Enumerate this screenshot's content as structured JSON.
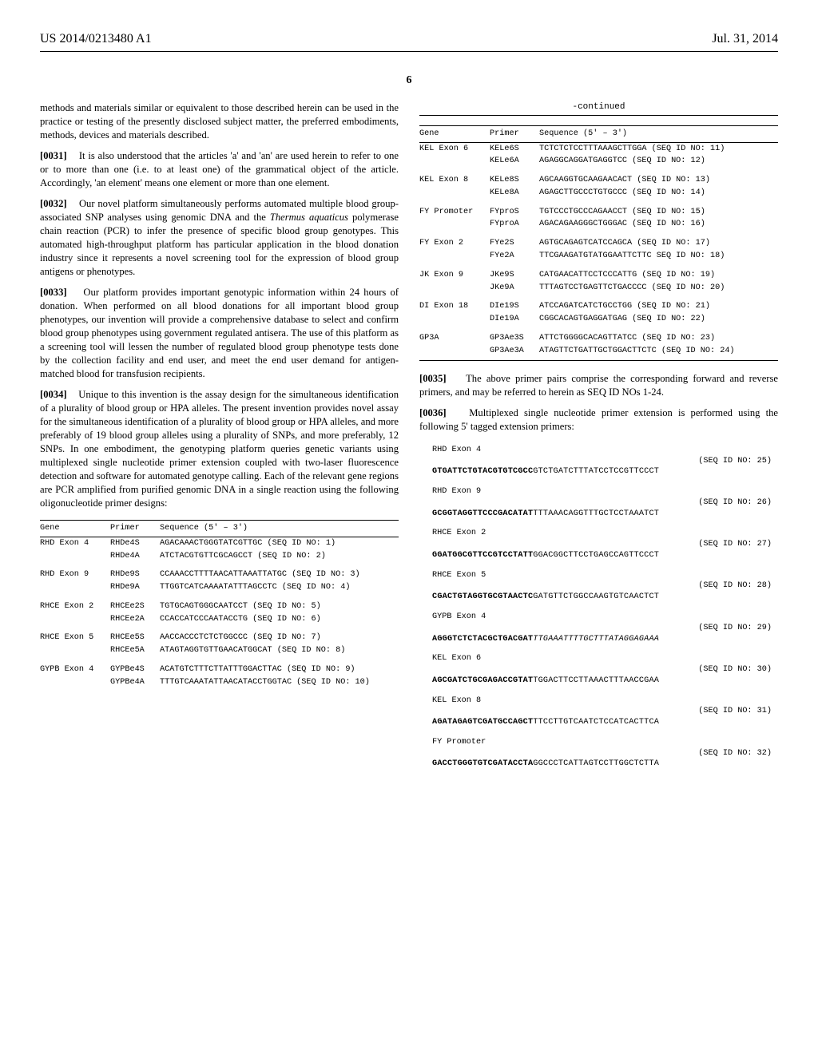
{
  "header": {
    "publication_number": "US 2014/0213480 A1",
    "publication_date": "Jul. 31, 2014"
  },
  "page_number": "6",
  "left_column": {
    "paragraphs": [
      {
        "num": "",
        "text": "methods and materials similar or equivalent to those described herein can be used in the practice or testing of the presently disclosed subject matter, the preferred embodiments, methods, devices and materials described."
      },
      {
        "num": "[0031]",
        "text": "It is also understood that the articles 'a' and 'an' are used herein to refer to one or to more than one (i.e. to at least one) of the grammatical object of the article. Accordingly, 'an element' means one element or more than one element."
      },
      {
        "num": "[0032]",
        "text_html": "Our novel platform simultaneously performs automated multiple blood group-associated SNP analyses using genomic DNA and the <span class=\"italic\">Thermus aquaticus</span> polymerase chain reaction (PCR) to infer the presence of specific blood group genotypes. This automated high-throughput platform has particular application in the blood donation industry since it represents a novel screening tool for the expression of blood group antigens or phenotypes."
      },
      {
        "num": "[0033]",
        "text": "Our platform provides important genotypic information within 24 hours of donation. When performed on all blood donations for all important blood group phenotypes, our invention will provide a comprehensive database to select and confirm blood group phenotypes using government regulated antisera. The use of this platform as a screening tool will lessen the number of regulated blood group phenotype tests done by the collection facility and end user, and meet the end user demand for antigen-matched blood for transfusion recipients."
      },
      {
        "num": "[0034]",
        "text": "Unique to this invention is the assay design for the simultaneous identification of a plurality of blood group or HPA alleles. The present invention provides novel assay for the simultaneous identification of a plurality of blood group or HPA alleles, and more preferably of 19 blood group alleles using a plurality of SNPs, and more preferably, 12 SNPs. In one embodiment, the genotyping platform queries genetic variants using multiplexed single nucleotide primer extension coupled with two-laser fluorescence detection and software for automated genotype calling. Each of the relevant gene regions are PCR amplified from purified genomic DNA in a single reaction using the following oligonucleotide primer designs:"
      }
    ],
    "table": {
      "headers": [
        "Gene",
        "Primer",
        "Sequence (5' – 3')"
      ],
      "rows": [
        {
          "gene": "RHD Exon 4",
          "primer": "RHDe4S",
          "seq": "AGACAAACTGGGTATCGTTGC (SEQ ID NO: 1)"
        },
        {
          "gene": "",
          "primer": "RHDe4A",
          "seq": "ATCTACGTGTTCGCAGCCT (SEQ ID NO: 2)"
        },
        {
          "gene": "RHD Exon 9",
          "primer": "RHDe9S",
          "seq": "CCAAACCTTTTAACATTAAATTATGC (SEQ ID NO: 3)"
        },
        {
          "gene": "",
          "primer": "RHDe9A",
          "seq": "TTGGTCATCAAAATATTTAGCCTC (SEQ ID NO: 4)"
        },
        {
          "gene": "RHCE Exon 2",
          "primer": "RHCEe2S",
          "seq": "TGTGCAGTGGGCAATCCT (SEQ ID NO: 5)"
        },
        {
          "gene": "",
          "primer": "RHCEe2A",
          "seq": "CCACCATCCCAATACCTG (SEQ ID NO: 6)"
        },
        {
          "gene": "RHCE Exon 5",
          "primer": "RHCEe5S",
          "seq": "AACCACCCTCTCTGGCCC (SEQ ID NO: 7)"
        },
        {
          "gene": "",
          "primer": "RHCEe5A",
          "seq": "ATAGTAGGTGTTGAACATGGCAT (SEQ ID NO: 8)"
        },
        {
          "gene": "GYPB Exon 4",
          "primer": "GYPBe4S",
          "seq": "ACATGTCTTTCTTATTTGGACTTAC (SEQ ID NO: 9)"
        },
        {
          "gene": "",
          "primer": "GYPBe4A",
          "seq": "TTTGTCAAATATTAACATACCTGGTAC (SEQ ID NO: 10)"
        }
      ]
    }
  },
  "right_column": {
    "continued_label": "-continued",
    "table": {
      "headers": [
        "Gene",
        "Primer",
        "Sequence (5' – 3')"
      ],
      "rows": [
        {
          "gene": "KEL Exon 6",
          "primer": "KELe6S",
          "seq": "TCTCTCTCCTTTAAAGCTTGGA (SEQ ID NO: 11)"
        },
        {
          "gene": "",
          "primer": "KELe6A",
          "seq": "AGAGGCAGGATGAGGTCC (SEQ ID NO: 12)"
        },
        {
          "gene": "KEL Exon 8",
          "primer": "KELe8S",
          "seq": "AGCAAGGTGCAAGAACACT (SEQ ID NO: 13)"
        },
        {
          "gene": "",
          "primer": "KELe8A",
          "seq": "AGAGCTTGCCCTGTGCCC (SEQ ID NO: 14)"
        },
        {
          "gene": "FY Promoter",
          "primer": "FYproS",
          "seq": "TGTCCCTGCCCAGAACCT (SEQ ID NO: 15)"
        },
        {
          "gene": "",
          "primer": "FYproA",
          "seq": "AGACAGAAGGGCTGGGAC (SEQ ID NO: 16)"
        },
        {
          "gene": "FY Exon 2",
          "primer": "FYe2S",
          "seq": "AGTGCAGAGTCATCCAGCA (SEQ ID NO: 17)"
        },
        {
          "gene": "",
          "primer": "FYe2A",
          "seq": "TTCGAAGATGTATGGAATTCTTC SEQ ID NO: 18)"
        },
        {
          "gene": "JK Exon 9",
          "primer": "JKe9S",
          "seq": "CATGAACATTCCTCCCATTG (SEQ ID NO: 19)"
        },
        {
          "gene": "",
          "primer": "JKe9A",
          "seq": "TTTAGTCCTGAGTTCTGACCCC (SEQ ID NO: 20)"
        },
        {
          "gene": "DI Exon 18",
          "primer": "DIe19S",
          "seq": "ATCCAGATCATCTGCCTGG (SEQ ID NO: 21)"
        },
        {
          "gene": "",
          "primer": "DIe19A",
          "seq": "CGGCACAGTGAGGATGAG (SEQ ID NO: 22)"
        },
        {
          "gene": "GP3A",
          "primer": "GP3Ae3S",
          "seq": "ATTCTGGGGCACAGTTATCC (SEQ ID NO: 23)"
        },
        {
          "gene": "",
          "primer": "GP3Ae3A",
          "seq": "ATAGTTCTGATTGCTGGACTTCTC (SEQ ID NO: 24)"
        }
      ]
    },
    "paragraphs": [
      {
        "num": "[0035]",
        "text": "The above primer pairs comprise the corresponding forward and reverse primers, and may be referred to herein as SEQ ID NOs 1-24."
      },
      {
        "num": "[0036]",
        "text": "Multiplexed single nucleotide primer extension is performed using the following 5' tagged extension primers:"
      }
    ],
    "ext_primers": [
      {
        "title": "RHD Exon 4",
        "seqid": "(SEQ ID NO: 25)",
        "tag": "GTGATTCTGTACGTGTCGCC",
        "tail": "GTCTGATCTTTATCCTCCGTTCCCT"
      },
      {
        "title": "RHD Exon 9",
        "seqid": "(SEQ ID NO: 26)",
        "tag": "GCGGTAGGTTCCCGACATAT",
        "tail": "TTTAAACAGGTTTGCTCCTAAATCT"
      },
      {
        "title": "RHCE Exon 2",
        "seqid": "(SEQ ID NO: 27)",
        "tag": "GGATGGCGTTCCGTCCTATT",
        "tail": "GGACGGCTTCCTGAGCCAGTTCCCT"
      },
      {
        "title": "RHCE Exon 5",
        "seqid": "(SEQ ID NO: 28)",
        "tag": "CGACTGTAGGTGCGTAACTC",
        "tail": "GATGTTCTGGCCAAGTGTCAACTCT"
      },
      {
        "title": "GYPB Exon 4",
        "seqid": "(SEQ ID NO: 29)",
        "tag": "AGGGTCTCTACGCTGACGAT",
        "tail_italic": "TTGAAATTTTGCTTTATAGGAGAAA"
      },
      {
        "title": "KEL Exon 6",
        "seqid": "(SEQ ID NO: 30)",
        "tag": "AGCGATCTGCGAGACCGTAT",
        "tail": "TGGACTTCCTTAAACTTTAACCGAA"
      },
      {
        "title": "KEL Exon 8",
        "seqid": "(SEQ ID NO: 31)",
        "tag": "AGATAGAGTCGATGCCAGCT",
        "tail": "TTCCTTGTCAATCTCCATCACTTCA"
      },
      {
        "title": "FY Promoter",
        "seqid": "(SEQ ID NO: 32)",
        "tag": "GACCTGGGTGTCGATACCTA",
        "tail": "GGCCCTCATTAGTCCTTGGCTCTTA"
      }
    ]
  }
}
